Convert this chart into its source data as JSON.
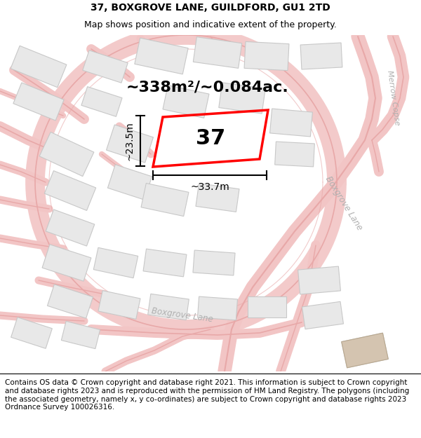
{
  "title": "37, BOXGROVE LANE, GUILDFORD, GU1 2TD",
  "subtitle": "Map shows position and indicative extent of the property.",
  "area_text": "~338m²/~0.084ac.",
  "dim_width": "~33.7m",
  "dim_height": "~23.5m",
  "property_number": "37",
  "footer": "Contains OS data © Crown copyright and database right 2021. This information is subject to Crown copyright and database rights 2023 and is reproduced with the permission of HM Land Registry. The polygons (including the associated geometry, namely x, y co-ordinates) are subject to Crown copyright and database rights 2023 Ordnance Survey 100026316.",
  "map_bg": "#ffffff",
  "road_fill_color": "#f5e8e8",
  "road_edge_color": "#e8b4b4",
  "building_fill": "#e8e8e8",
  "building_edge": "#c8c8c8",
  "highlight_color": "#ff0000",
  "text_color": "#000000",
  "road_label_color": "#b0b0b0",
  "title_fontsize": 10,
  "subtitle_fontsize": 9,
  "area_fontsize": 16,
  "footer_fontsize": 7.5,
  "property_fontsize": 22,
  "dim_fontsize": 10
}
